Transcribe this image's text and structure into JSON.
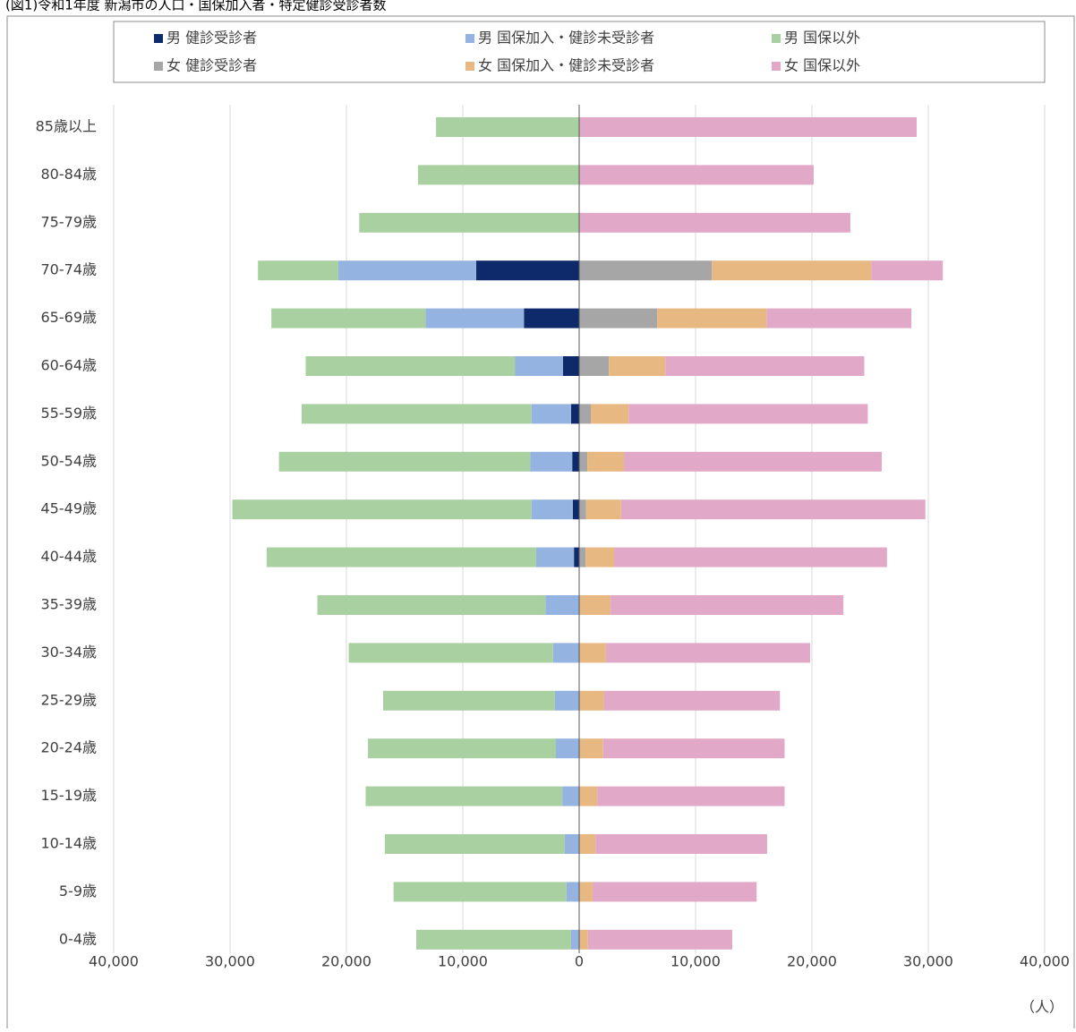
{
  "chart_data": {
    "type": "pyramid",
    "title": "(図1)令和1年度 新潟市の人口・国保加入者・特定健診受診者数",
    "x_label": "（人）",
    "categories": [
      "85歳以上",
      "80-84歳",
      "75-79歳",
      "70-74歳",
      "65-69歳",
      "60-64歳",
      "55-59歳",
      "50-54歳",
      "45-49歳",
      "40-44歳",
      "35-39歳",
      "30-34歳",
      "25-29歳",
      "20-24歳",
      "15-19歳",
      "10-14歳",
      "5-9歳",
      "0-4歳"
    ],
    "series": [
      {
        "name": "男 健診受診者",
        "color": "#0e2a6b",
        "values": [
          0,
          0,
          0,
          -8850,
          -4750,
          -1400,
          -700,
          -600,
          -550,
          -450,
          0,
          0,
          0,
          0,
          0,
          0,
          0,
          0
        ]
      },
      {
        "name": "男 国保加入・健診未受診者",
        "color": "#95b3e0",
        "values": [
          0,
          0,
          0,
          -11850,
          -8450,
          -4100,
          -3400,
          -3600,
          -3550,
          -3250,
          -2900,
          -2250,
          -2100,
          -2000,
          -1450,
          -1250,
          -1100,
          -700
        ]
      },
      {
        "name": "男 国保以外",
        "color": "#a9d0a0",
        "values": [
          -12300,
          -13850,
          -18900,
          -6900,
          -13250,
          -18000,
          -19750,
          -21600,
          -25700,
          -23150,
          -19600,
          -17550,
          -14750,
          -16150,
          -16900,
          -15450,
          -14850,
          -13300
        ]
      },
      {
        "name": "女 健診受診者",
        "color": "#a6a6a6",
        "values": [
          0,
          0,
          0,
          11400,
          6700,
          2550,
          1000,
          700,
          600,
          550,
          0,
          0,
          0,
          0,
          0,
          0,
          0,
          0
        ]
      },
      {
        "name": "女 国保加入・健診未受診者",
        "color": "#e8b882",
        "values": [
          0,
          0,
          0,
          13700,
          9400,
          4850,
          3250,
          3150,
          3000,
          2450,
          2700,
          2300,
          2150,
          2050,
          1550,
          1400,
          1150,
          750
        ]
      },
      {
        "name": "女 国保以外",
        "color": "#e2a8c8",
        "values": [
          29000,
          20150,
          23300,
          6150,
          12450,
          17100,
          20550,
          22150,
          26150,
          23450,
          20000,
          17550,
          15100,
          15600,
          16100,
          14750,
          14100,
          12400
        ]
      }
    ],
    "xlim": [
      -40000,
      40000
    ],
    "xticks": [
      {
        "value": -40000,
        "label": "40,000"
      },
      {
        "value": -30000,
        "label": "30,000"
      },
      {
        "value": -20000,
        "label": "20,000"
      },
      {
        "value": -10000,
        "label": "10,000"
      },
      0,
      {
        "value": 10000,
        "label": "10,000"
      },
      {
        "value": 20000,
        "label": "20,000"
      },
      {
        "value": 30000,
        "label": "30,000"
      },
      {
        "value": 40000,
        "label": "40,000"
      }
    ],
    "grid": true
  }
}
